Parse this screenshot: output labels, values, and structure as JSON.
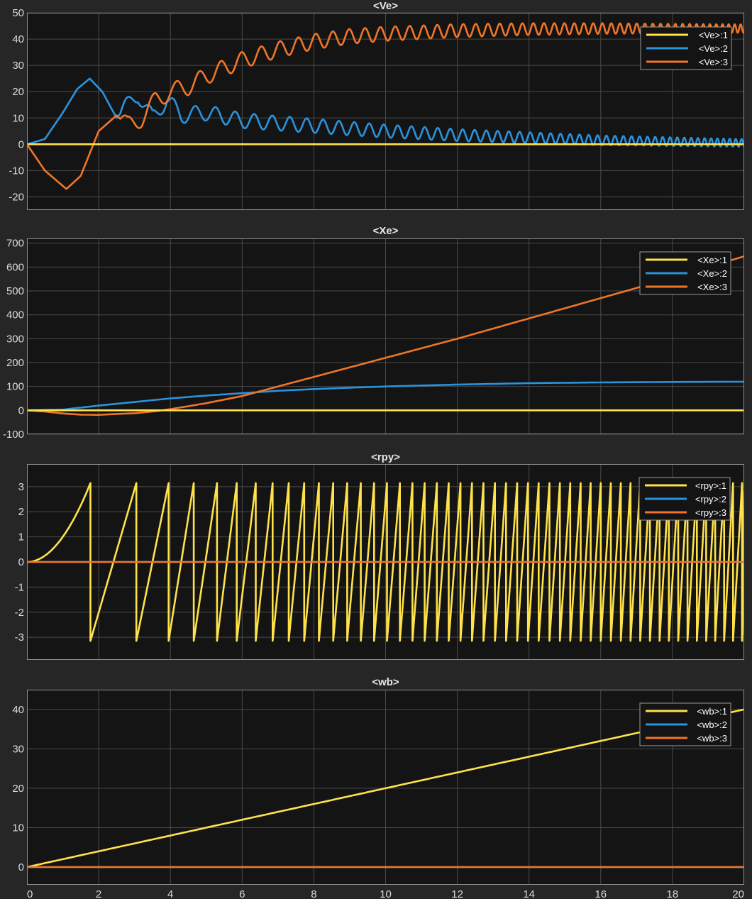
{
  "chart_data": [
    {
      "type": "line",
      "title": "<Ve>",
      "xlim": [
        0,
        20
      ],
      "ylim": [
        -25,
        50
      ],
      "yticks": [
        50,
        40,
        30,
        20,
        10,
        0,
        -10,
        -20
      ],
      "grid": true,
      "legend_position": "top-right",
      "series": [
        {
          "name": "<Ve>:1",
          "color": "#ffe24a",
          "x": [
            0,
            20
          ],
          "y": [
            0,
            0
          ]
        },
        {
          "name": "<Ve>:2",
          "color": "#2a93dd",
          "x": [
            0,
            0.5,
            1.0,
            1.4,
            1.75,
            2.1,
            2.5,
            2.75,
            3.1,
            3.5,
            3.9,
            4.3,
            5,
            6,
            7,
            8,
            9,
            10,
            12,
            14,
            16,
            18,
            20
          ],
          "y": [
            0,
            2,
            12,
            21,
            25,
            20,
            10,
            14,
            19,
            10,
            17,
            11,
            12,
            9,
            8,
            7,
            6,
            5,
            3.5,
            2.5,
            1.5,
            1,
            0.5
          ],
          "osc_amp": 3.2,
          "osc_period_start": 0.75,
          "osc_period_end": 0.16,
          "osc_start": 2.6
        },
        {
          "name": "<Ve>:3",
          "color": "#f07528",
          "x": [
            0,
            0.5,
            1.1,
            1.5,
            2.0,
            2.5,
            2.8,
            3.2,
            3.6,
            4.0,
            4.5,
            5,
            6,
            7,
            8,
            9,
            10,
            12,
            14,
            16,
            18,
            20
          ],
          "y": [
            0,
            -10,
            -17,
            -12,
            5,
            11,
            7,
            10,
            17,
            20,
            22,
            26,
            32,
            36,
            39,
            41,
            42,
            43.2,
            43.8,
            44,
            44,
            44
          ],
          "osc_amp": 3.5,
          "osc_period_start": 0.8,
          "osc_period_end": 0.16,
          "osc_start": 2.6
        }
      ]
    },
    {
      "type": "line",
      "title": "<Xe>",
      "xlim": [
        0,
        20
      ],
      "ylim": [
        -100,
        720
      ],
      "yticks": [
        700,
        600,
        500,
        400,
        300,
        200,
        100,
        0,
        -100
      ],
      "grid": true,
      "legend_position": "top-right",
      "series": [
        {
          "name": "<Xe>:1",
          "color": "#ffe24a",
          "x": [
            0,
            20
          ],
          "y": [
            0,
            0
          ]
        },
        {
          "name": "<Xe>:2",
          "color": "#2a93dd",
          "x": [
            0,
            1,
            2,
            3,
            4,
            5,
            6,
            7,
            8,
            9,
            10,
            12,
            14,
            16,
            18,
            20
          ],
          "y": [
            0,
            3,
            20,
            35,
            50,
            62,
            72,
            82,
            89,
            95,
            100,
            108,
            114,
            117,
            119,
            120
          ]
        },
        {
          "name": "<Xe>:3",
          "color": "#f07528",
          "x": [
            0,
            0.5,
            1,
            1.5,
            2,
            2.5,
            3,
            3.5,
            4,
            5,
            6,
            7,
            8,
            9,
            10,
            12,
            14,
            16,
            18,
            20
          ],
          "y": [
            0,
            -5,
            -13,
            -18,
            -19,
            -15,
            -12,
            -5,
            5,
            30,
            60,
            100,
            140,
            180,
            220,
            300,
            385,
            470,
            555,
            645
          ]
        }
      ]
    },
    {
      "type": "line",
      "title": "<rpy>",
      "xlim": [
        0,
        20
      ],
      "ylim": [
        -3.9,
        3.9
      ],
      "yticks": [
        3,
        2,
        1,
        0,
        -1,
        -2,
        -3
      ],
      "grid": true,
      "legend_position": "top-right",
      "series": [
        {
          "name": "<rpy>:1",
          "color": "#ffe24a",
          "sawtooth": true,
          "wrap_times": [
            1.77,
            3.05,
            3.95,
            4.65,
            5.3,
            5.85,
            6.38,
            6.85,
            7.3,
            7.73,
            8.14,
            8.54,
            8.93,
            9.31,
            9.68,
            10.04,
            10.4,
            10.75,
            11.09,
            11.43,
            11.76,
            12.09,
            12.41,
            12.73,
            13.05,
            13.36,
            13.67,
            13.97,
            14.27,
            14.57,
            14.86,
            15.15,
            15.44,
            15.72,
            16.0,
            16.28,
            16.56,
            16.83,
            17.1,
            17.37,
            17.64,
            17.9,
            18.16,
            18.42,
            18.68,
            18.94,
            19.19,
            19.44,
            19.69,
            19.94
          ],
          "end_value": 2.8
        },
        {
          "name": "<rpy>:2",
          "color": "#2a93dd",
          "x": [
            0,
            20
          ],
          "y": [
            0,
            0
          ]
        },
        {
          "name": "<rpy>:3",
          "color": "#f07528",
          "x": [
            0,
            20
          ],
          "y": [
            0,
            0
          ]
        }
      ]
    },
    {
      "type": "line",
      "title": "<wb>",
      "xlim": [
        0,
        20
      ],
      "ylim": [
        -4.5,
        45
      ],
      "yticks": [
        40,
        30,
        20,
        10,
        0
      ],
      "xticks": [
        0,
        2,
        4,
        6,
        8,
        10,
        12,
        14,
        16,
        18,
        20
      ],
      "grid": true,
      "legend_position": "top-right",
      "series": [
        {
          "name": "<wb>:1",
          "color": "#ffe24a",
          "x": [
            0,
            20
          ],
          "y": [
            0,
            40
          ]
        },
        {
          "name": "<wb>:2",
          "color": "#2a93dd",
          "x": [
            0,
            20
          ],
          "y": [
            0,
            0
          ]
        },
        {
          "name": "<wb>:3",
          "color": "#f07528",
          "x": [
            0,
            20
          ],
          "y": [
            0,
            0
          ]
        }
      ]
    }
  ]
}
